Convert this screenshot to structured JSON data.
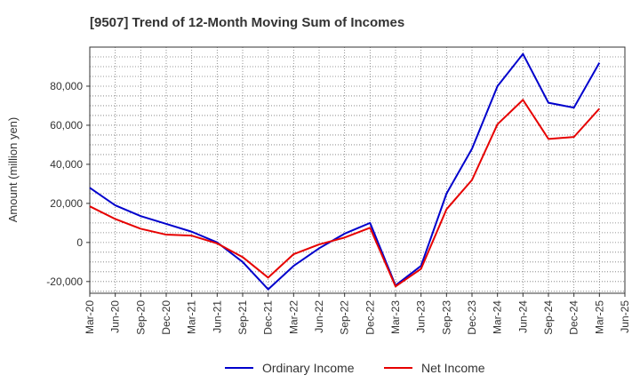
{
  "chart_data": {
    "type": "line",
    "title": "[9507]  Trend of 12-Month Moving Sum of Incomes",
    "xlabel": "",
    "ylabel": "Amount (million yen)",
    "categories": [
      "Mar-20",
      "Jun-20",
      "Sep-20",
      "Dec-20",
      "Mar-21",
      "Jun-21",
      "Sep-21",
      "Dec-21",
      "Mar-22",
      "Jun-22",
      "Sep-22",
      "Dec-22",
      "Mar-23",
      "Jun-23",
      "Sep-23",
      "Dec-23",
      "Mar-24",
      "Jun-24",
      "Sep-24",
      "Dec-24",
      "Mar-25",
      "Jun-25"
    ],
    "ylim": [
      -26000,
      100000
    ],
    "yticks": [
      -20000,
      0,
      20000,
      40000,
      60000,
      80000
    ],
    "ytick_labels": [
      "-20,000",
      "0",
      "20,000",
      "40,000",
      "60,000",
      "80,000"
    ],
    "grid": true,
    "legend_position": "bottom",
    "series": [
      {
        "name": "Ordinary Income",
        "color": "#0000cc",
        "values": [
          28000,
          19000,
          13500,
          9500,
          5500,
          0,
          -10000,
          -24000,
          -12000,
          -3000,
          4500,
          10000,
          -22000,
          -12000,
          25000,
          48000,
          80000,
          96500,
          71500,
          69000,
          92000,
          null
        ]
      },
      {
        "name": "Net Income",
        "color": "#e60000",
        "values": [
          18500,
          12000,
          7000,
          4000,
          3500,
          -500,
          -7500,
          -18000,
          -6000,
          -1000,
          2500,
          7500,
          -22500,
          -13500,
          17000,
          32000,
          60500,
          73000,
          53000,
          54000,
          68500,
          null
        ]
      }
    ]
  }
}
